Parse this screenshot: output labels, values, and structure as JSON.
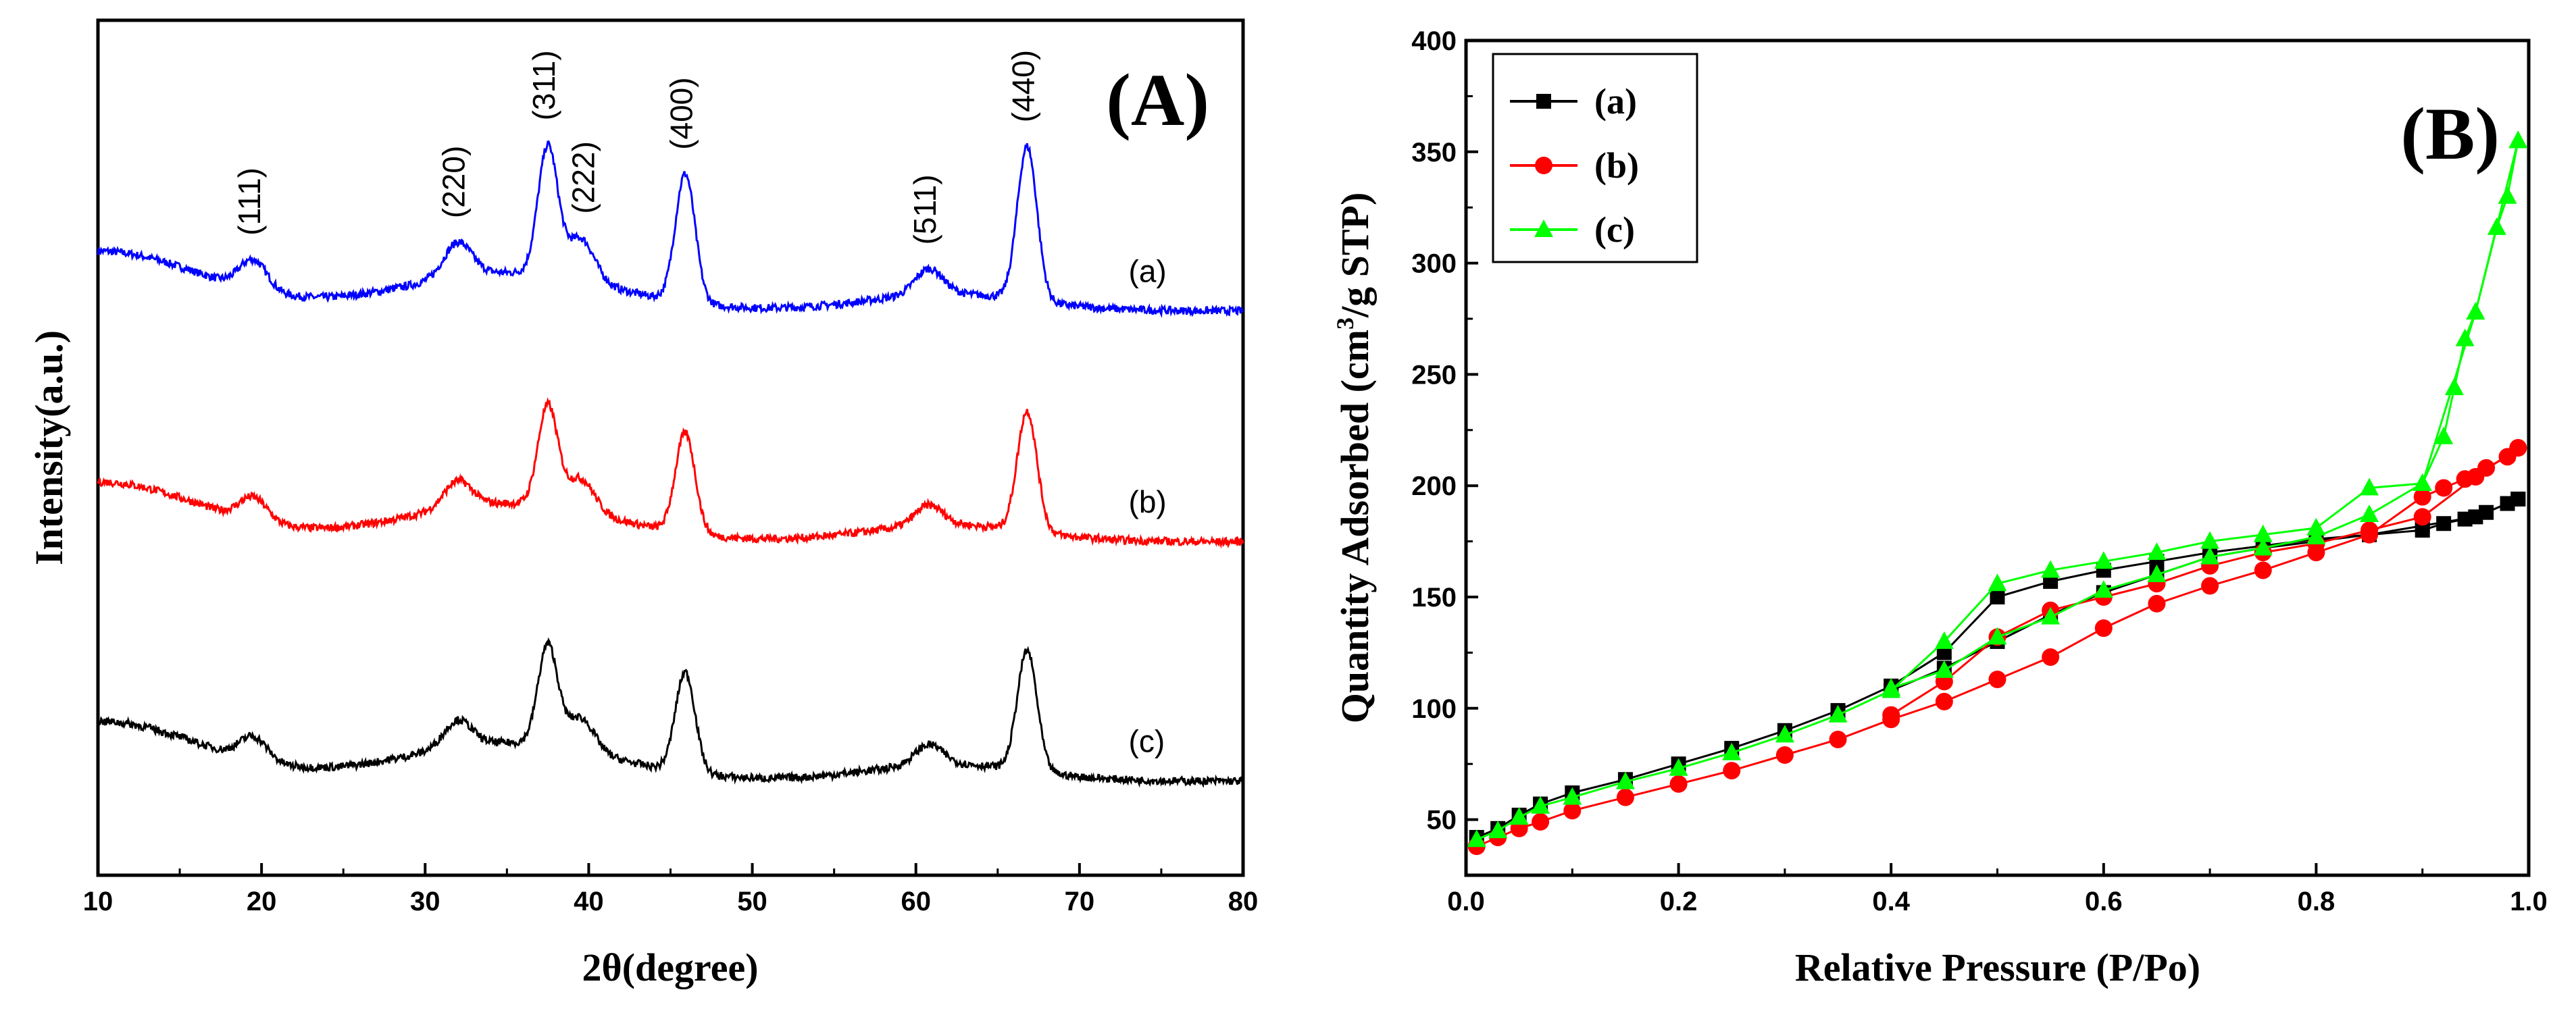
{
  "chart_data": [
    {
      "type": "line",
      "panel_label": "(A)",
      "xlabel": "2θ(degree)",
      "ylabel": "Intensity(a.u.)",
      "xlim": [
        10,
        80
      ],
      "x_ticks": [
        "10",
        "20",
        "30",
        "40",
        "50",
        "60",
        "70",
        "80"
      ],
      "y_ticks": [],
      "grid": false,
      "series": [
        {
          "name": "(a)",
          "color": "#0000ff",
          "baseline": 0.66,
          "amp": 1.0
        },
        {
          "name": "(b)",
          "color": "#ff0000",
          "baseline": 0.39,
          "amp": 0.78
        },
        {
          "name": "(c)",
          "color": "#000000",
          "baseline": 0.11,
          "amp": 0.78
        }
      ],
      "peaks": [
        {
          "label": "(111)",
          "x": 19.5,
          "h": 0.035
        },
        {
          "label": "(220)",
          "x": 32.0,
          "h": 0.04
        },
        {
          "label": "(311)",
          "x": 37.5,
          "h": 0.15
        },
        {
          "label": "(222)",
          "x": 39.5,
          "h": 0.05
        },
        {
          "label": "(400)",
          "x": 45.9,
          "h": 0.15
        },
        {
          "label": "(511)",
          "x": 60.8,
          "h": 0.03
        },
        {
          "label": "(440)",
          "x": 66.8,
          "h": 0.18
        }
      ]
    },
    {
      "type": "line",
      "panel_label": "(B)",
      "xlabel": "Relative Pressure (P/Po)",
      "ylabel_parts": [
        "Quantity Adsorbed (cm",
        "3",
        "/g STP)"
      ],
      "xlim": [
        0.0,
        1.0
      ],
      "ylim": [
        25,
        400
      ],
      "x_ticks": [
        "0.0",
        "0.2",
        "0.4",
        "0.6",
        "0.8",
        "1.0"
      ],
      "y_ticks": [
        "50",
        "100",
        "150",
        "200",
        "250",
        "300",
        "350",
        "400"
      ],
      "legend_position": "top-left",
      "grid": false,
      "series": [
        {
          "name": "(a)",
          "color": "#000000",
          "marker": "square",
          "adsorption": [
            [
              0.01,
              42
            ],
            [
              0.03,
              46
            ],
            [
              0.05,
              52
            ],
            [
              0.07,
              57
            ],
            [
              0.1,
              62
            ],
            [
              0.15,
              68
            ],
            [
              0.2,
              75
            ],
            [
              0.25,
              82
            ],
            [
              0.3,
              90
            ],
            [
              0.35,
              99
            ],
            [
              0.4,
              110
            ],
            [
              0.45,
              125
            ],
            [
              0.5,
              150
            ],
            [
              0.55,
              157
            ],
            [
              0.6,
              162
            ],
            [
              0.65,
              166
            ],
            [
              0.7,
              170
            ],
            [
              0.75,
              173
            ],
            [
              0.8,
              176
            ],
            [
              0.85,
              178
            ],
            [
              0.9,
              180
            ],
            [
              0.92,
              183
            ],
            [
              0.94,
              185
            ],
            [
              0.96,
              188
            ],
            [
              0.98,
              192
            ],
            [
              0.99,
              194
            ]
          ],
          "desorption": [
            [
              0.99,
              194
            ],
            [
              0.95,
              186
            ],
            [
              0.9,
              182
            ],
            [
              0.85,
              178
            ],
            [
              0.8,
              175
            ],
            [
              0.75,
              172
            ],
            [
              0.7,
              168
            ],
            [
              0.65,
              160
            ],
            [
              0.6,
              152
            ],
            [
              0.55,
              142
            ],
            [
              0.5,
              130
            ],
            [
              0.45,
              118
            ],
            [
              0.4,
              108
            ]
          ]
        },
        {
          "name": "(b)",
          "color": "#ff0000",
          "marker": "circle",
          "adsorption": [
            [
              0.01,
              38
            ],
            [
              0.03,
              42
            ],
            [
              0.05,
              46
            ],
            [
              0.07,
              49
            ],
            [
              0.1,
              54
            ],
            [
              0.15,
              60
            ],
            [
              0.2,
              66
            ],
            [
              0.25,
              72
            ],
            [
              0.3,
              79
            ],
            [
              0.35,
              86
            ],
            [
              0.4,
              95
            ],
            [
              0.45,
              103
            ],
            [
              0.5,
              113
            ],
            [
              0.55,
              123
            ],
            [
              0.6,
              136
            ],
            [
              0.65,
              147
            ],
            [
              0.7,
              155
            ],
            [
              0.75,
              162
            ],
            [
              0.8,
              170
            ],
            [
              0.85,
              178
            ],
            [
              0.9,
              195
            ],
            [
              0.92,
              199
            ],
            [
              0.94,
              203
            ],
            [
              0.96,
              208
            ],
            [
              0.98,
              213
            ],
            [
              0.99,
              217
            ]
          ],
          "desorption": [
            [
              0.99,
              217
            ],
            [
              0.95,
              204
            ],
            [
              0.9,
              186
            ],
            [
              0.85,
              180
            ],
            [
              0.8,
              174
            ],
            [
              0.75,
              170
            ],
            [
              0.7,
              164
            ],
            [
              0.65,
              156
            ],
            [
              0.6,
              150
            ],
            [
              0.55,
              144
            ],
            [
              0.5,
              132
            ],
            [
              0.45,
              112
            ],
            [
              0.4,
              97
            ]
          ]
        },
        {
          "name": "(c)",
          "color": "#00ff00",
          "marker": "triangle",
          "adsorption": [
            [
              0.01,
              41
            ],
            [
              0.03,
              45
            ],
            [
              0.05,
              51
            ],
            [
              0.07,
              56
            ],
            [
              0.1,
              60
            ],
            [
              0.15,
              67
            ],
            [
              0.2,
              73
            ],
            [
              0.25,
              80
            ],
            [
              0.3,
              88
            ],
            [
              0.35,
              97
            ],
            [
              0.4,
              108
            ],
            [
              0.45,
              130
            ],
            [
              0.5,
              156
            ],
            [
              0.55,
              162
            ],
            [
              0.6,
              166
            ],
            [
              0.65,
              170
            ],
            [
              0.7,
              175
            ],
            [
              0.75,
              178
            ],
            [
              0.8,
              181
            ],
            [
              0.85,
              199
            ],
            [
              0.9,
              201
            ],
            [
              0.92,
              222
            ],
            [
              0.93,
              244
            ],
            [
              0.94,
              266
            ],
            [
              0.95,
              278
            ],
            [
              0.97,
              316
            ],
            [
              0.98,
              330
            ],
            [
              0.99,
              355
            ]
          ],
          "desorption": [
            [
              0.99,
              355
            ],
            [
              0.95,
              278
            ],
            [
              0.9,
              201
            ],
            [
              0.85,
              187
            ],
            [
              0.8,
              177
            ],
            [
              0.75,
              172
            ],
            [
              0.7,
              168
            ],
            [
              0.65,
              160
            ],
            [
              0.6,
              153
            ],
            [
              0.55,
              141
            ],
            [
              0.5,
              132
            ],
            [
              0.45,
              117
            ],
            [
              0.4,
              109
            ]
          ]
        }
      ]
    }
  ]
}
